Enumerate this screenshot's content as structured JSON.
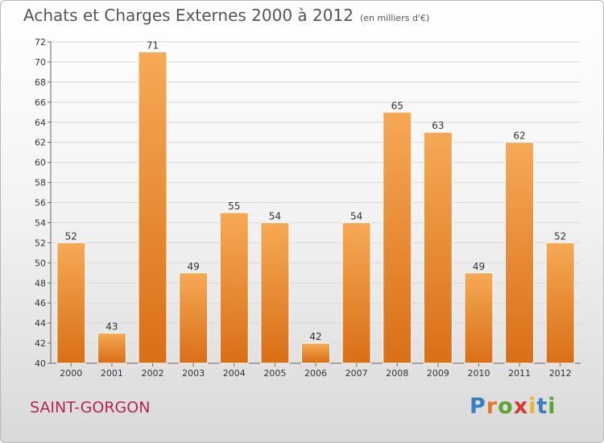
{
  "title": "Achats et Charges Externes 2000 à 2012",
  "unit": "(en milliers d'€)",
  "place": "SAINT-GORGON",
  "logo": {
    "letters": [
      "P",
      "r",
      "o",
      "x",
      "i",
      "t",
      "i"
    ],
    "colors": [
      "#3a7fc1",
      "#e8772e",
      "#5aa62e",
      "#d63a2c",
      "#e8b52e",
      "#3a7fc1",
      "#5aa62e"
    ]
  },
  "colors": {
    "bar_top": "#f6a955",
    "bar_bottom": "#d96f17",
    "label": "#333333",
    "place": "#b5245b"
  },
  "chart_data": {
    "type": "bar",
    "categories": [
      "2000",
      "2001",
      "2002",
      "2003",
      "2004",
      "2005",
      "2006",
      "2007",
      "2008",
      "2009",
      "2010",
      "2011",
      "2012"
    ],
    "values": [
      52,
      43,
      71,
      49,
      55,
      54,
      42,
      54,
      65,
      63,
      49,
      62,
      52
    ],
    "title": "Achats et Charges Externes 2000 à 2012",
    "ylim": [
      40,
      72
    ],
    "yticks": [
      40,
      42,
      44,
      46,
      48,
      50,
      52,
      54,
      56,
      58,
      60,
      62,
      64,
      66,
      68,
      70,
      72
    ],
    "grid": true,
    "legend": "none"
  }
}
